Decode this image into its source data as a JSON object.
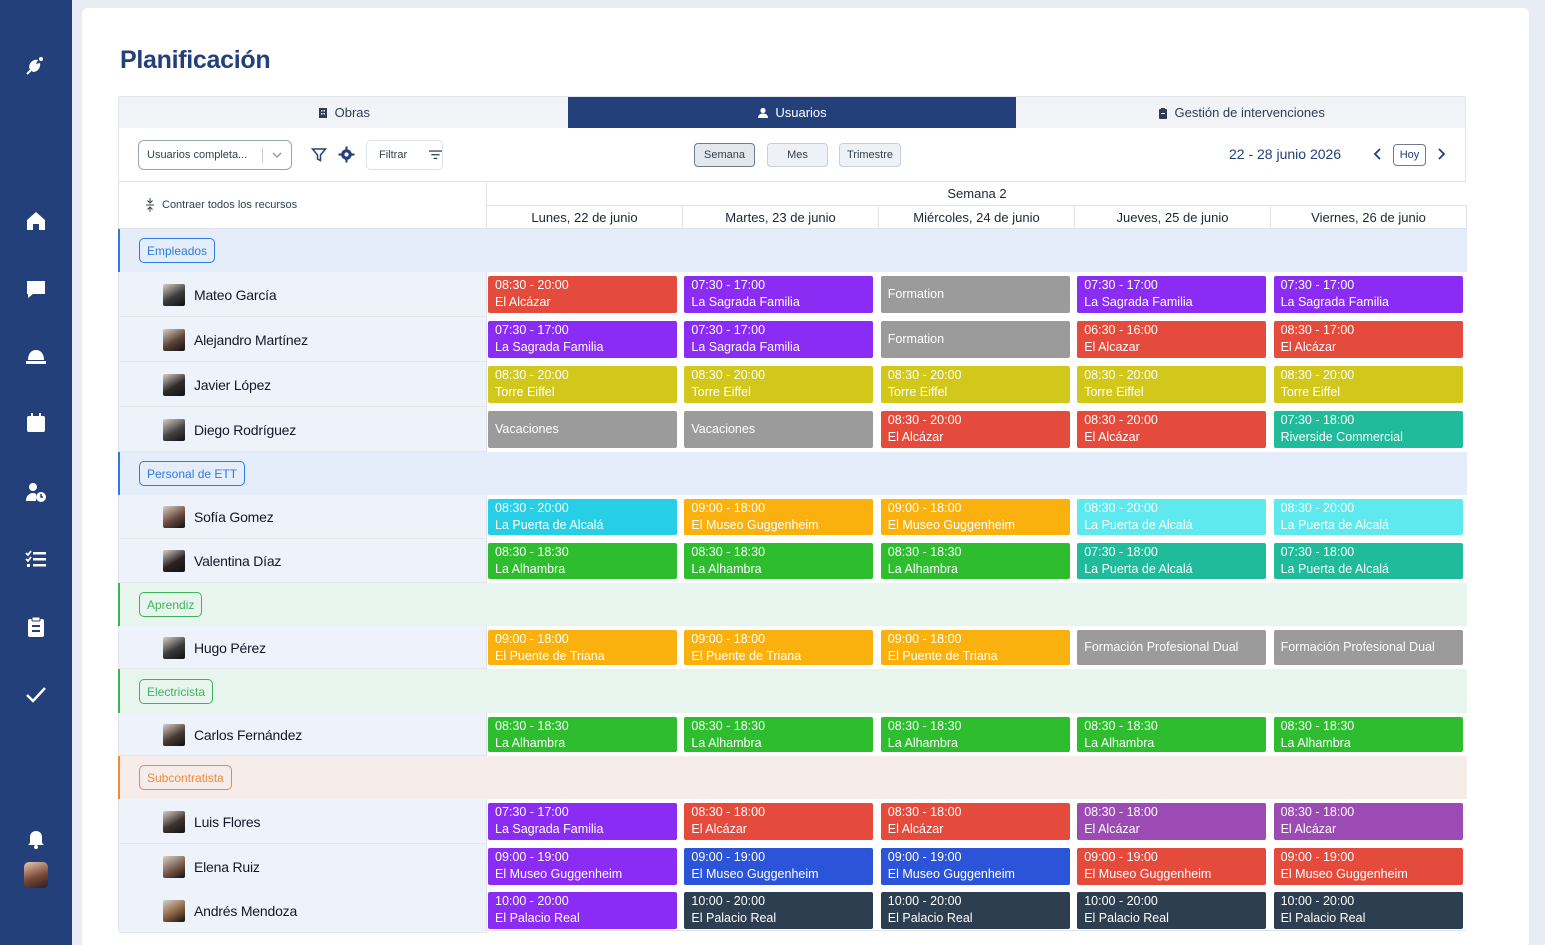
{
  "page": {
    "title": "Planificación"
  },
  "tabs": [
    {
      "label": "Obras",
      "icon": "building-icon",
      "active": false
    },
    {
      "label": "Usuarios",
      "icon": "user-icon",
      "active": true
    },
    {
      "label": "Gestión de intervenciones",
      "icon": "clipboard-icon",
      "active": false
    }
  ],
  "toolbar": {
    "users_select_value": "Usuarios completa...",
    "filter_label": "Filtrar",
    "views": [
      "Semana",
      "Mes",
      "Trimestre"
    ],
    "active_view": "Semana",
    "date_range": "22 - 28 junio 2026",
    "today_label": "Hoy"
  },
  "grid": {
    "collapse_label": "Contraer todos los recursos",
    "week_label": "Semana 2",
    "days": [
      "Lunes, 22 de junio",
      "Martes, 23 de junio",
      "Miércoles, 24 de junio",
      "Jueves, 25 de junio",
      "Viernes, 26 de junio"
    ]
  },
  "colors": {
    "red": "#e44b3c",
    "purple": "#8b2cf5",
    "gray": "#9b9b9b",
    "olive": "#d2c81c",
    "teal": "#1fbb9a",
    "cyan": "#26cfe6",
    "lightcyan": "#5ee9ee",
    "orange": "#fbb10d",
    "green": "#2dbd2f",
    "violet": "#9b4bb3",
    "blue": "#2c54d8",
    "navy": "#2c3e50",
    "sidebar": "#23407b"
  },
  "groups": [
    {
      "label": "Empleados",
      "tag_color": "#2d7be0",
      "bg": "#e5edfb",
      "row_bg": "#eef2fb",
      "members": [
        {
          "name": "Mateo García",
          "shifts": [
            {
              "time": "08:30 - 20:00",
              "place": "El Alcázar",
              "color": "red"
            },
            {
              "time": "07:30 - 17:00",
              "place": "La Sagrada Familia",
              "color": "purple"
            },
            {
              "time": "",
              "place": "Formation",
              "color": "gray"
            },
            {
              "time": "07:30 - 17:00",
              "place": "La Sagrada Familia",
              "color": "purple"
            },
            {
              "time": "07:30 - 17:00",
              "place": "La Sagrada Familia",
              "color": "purple"
            }
          ]
        },
        {
          "name": "Alejandro Martínez",
          "shifts": [
            {
              "time": "07:30 - 17:00",
              "place": "La Sagrada Familia",
              "color": "purple"
            },
            {
              "time": "07:30 - 17:00",
              "place": "La Sagrada Familia",
              "color": "purple"
            },
            {
              "time": "",
              "place": "Formation",
              "color": "gray"
            },
            {
              "time": "06:30 - 16:00",
              "place": "El Alcazar",
              "color": "red"
            },
            {
              "time": "08:30 - 17:00",
              "place": "El Alcázar",
              "color": "red"
            }
          ]
        },
        {
          "name": "Javier López",
          "shifts": [
            {
              "time": "08:30 - 20:00",
              "place": "Torre Eiffel",
              "color": "olive"
            },
            {
              "time": "08:30 - 20:00",
              "place": "Torre Eiffel",
              "color": "olive"
            },
            {
              "time": "08:30 - 20:00",
              "place": "Torre Eiffel",
              "color": "olive"
            },
            {
              "time": "08:30 - 20:00",
              "place": "Torre Eiffel",
              "color": "olive"
            },
            {
              "time": "08:30 - 20:00",
              "place": "Torre Eiffel",
              "color": "olive"
            }
          ]
        },
        {
          "name": "Diego Rodríguez",
          "shifts": [
            {
              "time": "",
              "place": "Vacaciones",
              "color": "gray"
            },
            {
              "time": "",
              "place": "Vacaciones",
              "color": "gray"
            },
            {
              "time": "08:30 - 20:00",
              "place": "El Alcázar",
              "color": "red"
            },
            {
              "time": "08:30 - 20:00",
              "place": "El Alcázar",
              "color": "red"
            },
            {
              "time": "07:30 - 18:00",
              "place": "Riverside Commercial",
              "color": "teal"
            }
          ]
        }
      ]
    },
    {
      "label": "Personal de ETT",
      "tag_color": "#2d7be0",
      "bg": "#e5edfb",
      "row_bg": "#eef2fb",
      "members": [
        {
          "name": "Sofía Gomez",
          "shifts": [
            {
              "time": "08:30 - 20:00",
              "place": "La Puerta de Alcalá",
              "color": "cyan"
            },
            {
              "time": "09:00 - 18:00",
              "place": "El Museo Guggenheim",
              "color": "orange"
            },
            {
              "time": "09:00 - 18:00",
              "place": "El Museo Guggenheim",
              "color": "orange"
            },
            {
              "time": "08:30 - 20:00",
              "place": "La Puerta de Alcalá",
              "color": "lightcyan"
            },
            {
              "time": "08:30 - 20:00",
              "place": "La Puerta de Alcalá",
              "color": "lightcyan"
            }
          ]
        },
        {
          "name": "Valentina Díaz",
          "shifts": [
            {
              "time": "08:30 - 18:30",
              "place": "La Alhambra",
              "color": "green"
            },
            {
              "time": "08:30 - 18:30",
              "place": "La Alhambra",
              "color": "green"
            },
            {
              "time": "08:30 - 18:30",
              "place": "La Alhambra",
              "color": "green"
            },
            {
              "time": "07:30 - 18:00",
              "place": "La Puerta de Alcalá",
              "color": "teal"
            },
            {
              "time": "07:30 - 18:00",
              "place": "La Puerta de Alcalá",
              "color": "teal"
            }
          ]
        }
      ]
    },
    {
      "label": "Aprendiz",
      "tag_color": "#3fb35a",
      "bg": "#e8f4ee",
      "row_bg": "#eef2fb",
      "members": [
        {
          "name": "Hugo Pérez",
          "shifts": [
            {
              "time": "09:00 - 18:00",
              "place": "El Puente de Triana",
              "color": "orange"
            },
            {
              "time": "09:00 - 18:00",
              "place": "El Puente de Triana",
              "color": "orange"
            },
            {
              "time": "09:00 - 18:00",
              "place": "El Puente de Triana",
              "color": "orange"
            },
            {
              "time": "",
              "place": "Formación Profesional Dual",
              "color": "gray"
            },
            {
              "time": "",
              "place": "Formación Profesional Dual",
              "color": "gray"
            }
          ]
        }
      ]
    },
    {
      "label": "Electricista",
      "tag_color": "#3fb35a",
      "bg": "#e8f4ee",
      "row_bg": "#eef2fb",
      "members": [
        {
          "name": "Carlos Fernández",
          "shifts": [
            {
              "time": "08:30 - 18:30",
              "place": "La Alhambra",
              "color": "green"
            },
            {
              "time": "08:30 - 18:30",
              "place": "La Alhambra",
              "color": "green"
            },
            {
              "time": "08:30 - 18:30",
              "place": "La Alhambra",
              "color": "green"
            },
            {
              "time": "08:30 - 18:30",
              "place": "La Alhambra",
              "color": "green"
            },
            {
              "time": "08:30 - 18:30",
              "place": "La Alhambra",
              "color": "green"
            }
          ]
        }
      ]
    },
    {
      "label": "Subcontratista",
      "tag_color": "#f0893a",
      "bg": "#f6ecea",
      "row_bg": "#eef2fb",
      "members": [
        {
          "name": "Luis Flores",
          "shifts": [
            {
              "time": "07:30 - 17:00",
              "place": "La Sagrada Familia",
              "color": "purple"
            },
            {
              "time": "08:30 - 18:00",
              "place": "El Alcázar",
              "color": "red"
            },
            {
              "time": "08:30 - 18:00",
              "place": "El Alcázar",
              "color": "red"
            },
            {
              "time": "08:30 - 18:00",
              "place": "El Alcázar",
              "color": "violet"
            },
            {
              "time": "08:30 - 18:00",
              "place": "El Alcázar",
              "color": "violet"
            }
          ]
        },
        {
          "name": "Elena Ruiz",
          "shifts": [
            {
              "time": "09:00 - 19:00",
              "place": "El Museo Guggenheim",
              "color": "purple"
            },
            {
              "time": "09:00 - 19:00",
              "place": "El Museo Guggenheim",
              "color": "blue"
            },
            {
              "time": "09:00 - 19:00",
              "place": "El Museo Guggenheim",
              "color": "blue"
            },
            {
              "time": "09:00 - 19:00",
              "place": "El Museo Guggenheim",
              "color": "red"
            },
            {
              "time": "09:00 - 19:00",
              "place": "El Museo Guggenheim",
              "color": "red"
            }
          ]
        },
        {
          "name": "Andrés Mendoza",
          "shifts": [
            {
              "time": "10:00 - 20:00",
              "place": "El Palacio Real",
              "color": "purple"
            },
            {
              "time": "10:00 - 20:00",
              "place": "El Palacio Real",
              "color": "navy"
            },
            {
              "time": "10:00 - 20:00",
              "place": "El Palacio Real",
              "color": "navy"
            },
            {
              "time": "10:00 - 20:00",
              "place": "El Palacio Real",
              "color": "navy"
            },
            {
              "time": "10:00 - 20:00",
              "place": "El Palacio Real",
              "color": "navy"
            }
          ]
        }
      ]
    }
  ]
}
